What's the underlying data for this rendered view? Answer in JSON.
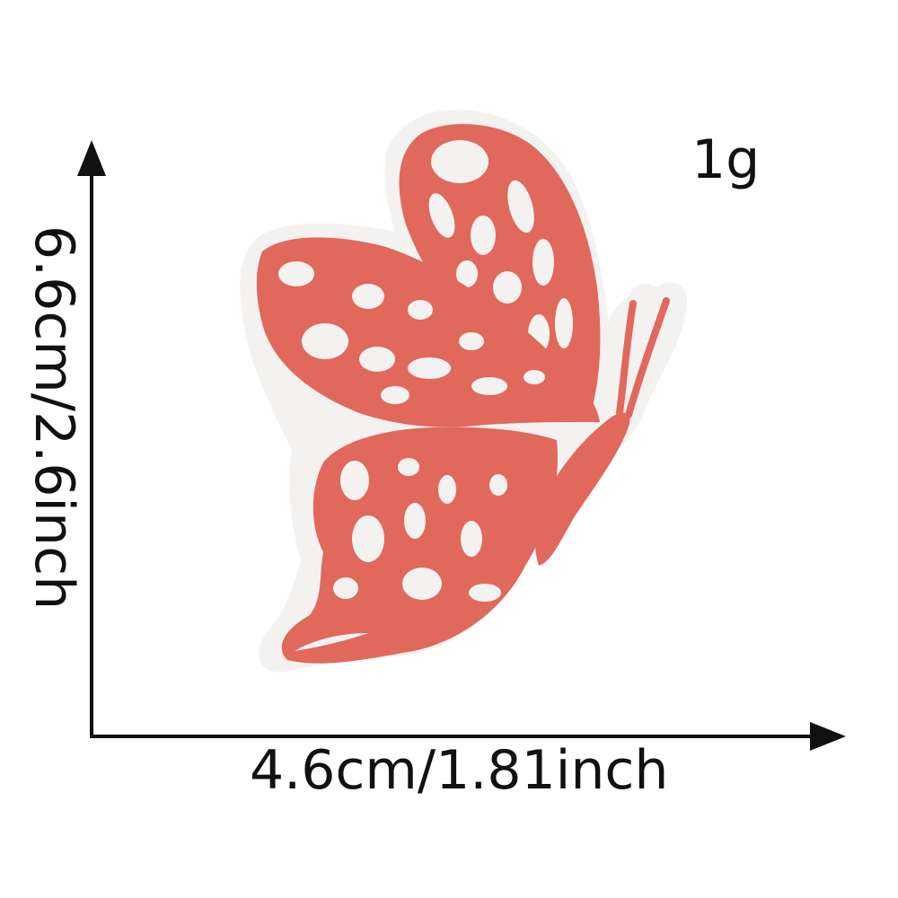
{
  "product_image": {
    "name": "butterfly-embroidered-patch",
    "thread_color": "#e0695c",
    "backing_color": "#f3f2f0"
  },
  "dimensions": {
    "width_label": "4.6cm/1.81inch",
    "height_label": "6.6cm/2.6inch",
    "weight_label": "1g",
    "line_color": "#111111"
  }
}
